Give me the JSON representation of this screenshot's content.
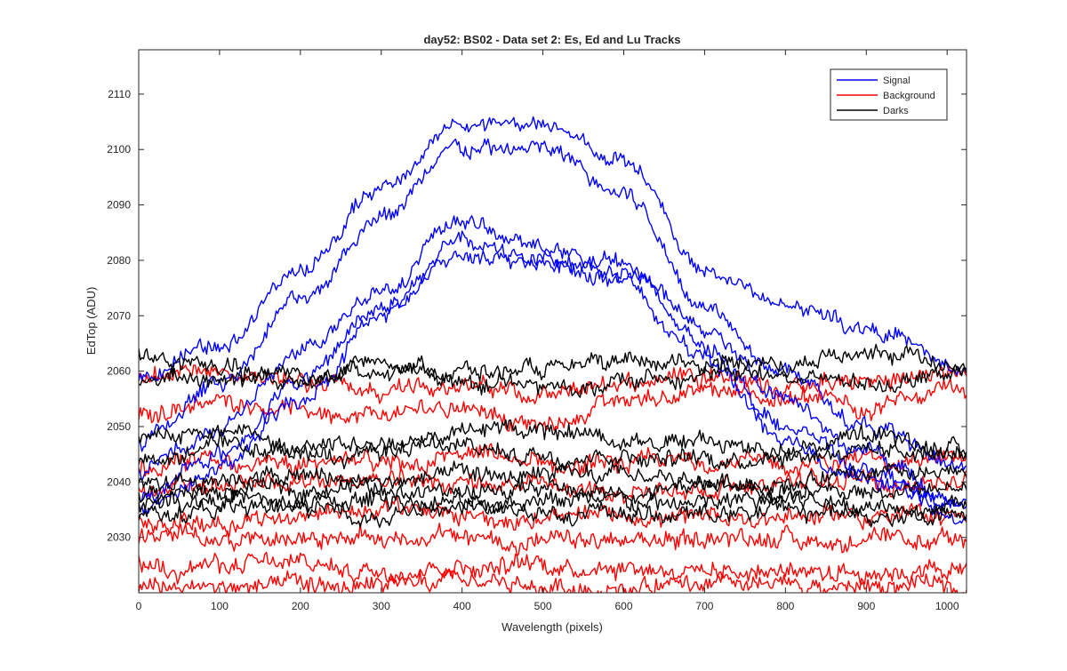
{
  "chart_data": {
    "type": "line",
    "title": "day52: BS02 - Data set 2: Es, Ed and Lu Tracks",
    "xlabel": "Wavelength (pixels)",
    "ylabel": "EdTop (ADU)",
    "xlim": [
      0,
      1024
    ],
    "ylim": [
      2020,
      2118
    ],
    "xticks": [
      0,
      100,
      200,
      300,
      400,
      500,
      600,
      700,
      800,
      900,
      1000
    ],
    "yticks": [
      2030,
      2040,
      2050,
      2060,
      2070,
      2080,
      2090,
      2100,
      2110
    ],
    "grid": false,
    "legend_position": "top-right",
    "legend": [
      {
        "name": "Signal",
        "color": "#0000ff"
      },
      {
        "name": "Background",
        "color": "#ff0000"
      },
      {
        "name": "Darks",
        "color": "#000000"
      }
    ],
    "noise_amplitude": {
      "Signal": 1.4,
      "Background": 1.6,
      "Darks": 1.5
    },
    "series": [
      {
        "name": "Signal",
        "color": "#0000ff",
        "anchors_x": [
          0,
          100,
          200,
          300,
          400,
          500,
          600,
          700,
          800,
          900,
          1024
        ],
        "anchors_y": [
          2059,
          2065,
          2078,
          2093,
          2105,
          2104,
          2098,
          2078,
          2072,
          2068,
          2060
        ]
      },
      {
        "name": "Signal",
        "color": "#0000ff",
        "anchors_x": [
          0,
          100,
          200,
          300,
          400,
          500,
          600,
          700,
          800,
          900,
          1024
        ],
        "anchors_y": [
          2047,
          2058,
          2073,
          2088,
          2100,
          2100,
          2092,
          2072,
          2060,
          2050,
          2042
        ]
      },
      {
        "name": "Signal",
        "color": "#0000ff",
        "anchors_x": [
          0,
          100,
          200,
          300,
          400,
          500,
          600,
          700,
          800,
          900,
          1024
        ],
        "anchors_y": [
          2042,
          2050,
          2063,
          2075,
          2087,
          2082,
          2079,
          2068,
          2055,
          2045,
          2036
        ]
      },
      {
        "name": "Signal",
        "color": "#0000ff",
        "anchors_x": [
          0,
          100,
          200,
          300,
          400,
          500,
          600,
          700,
          800,
          900,
          1024
        ],
        "anchors_y": [
          2037,
          2045,
          2058,
          2072,
          2083,
          2080,
          2078,
          2065,
          2050,
          2042,
          2033
        ]
      },
      {
        "name": "Signal",
        "color": "#0000ff",
        "anchors_x": [
          0,
          100,
          200,
          300,
          400,
          500,
          600,
          700,
          800,
          900,
          1024
        ],
        "anchors_y": [
          2035,
          2042,
          2055,
          2070,
          2081,
          2080,
          2076,
          2062,
          2048,
          2040,
          2036
        ]
      },
      {
        "name": "Background",
        "color": "#ff0000",
        "anchors_x": [
          0,
          100,
          200,
          300,
          400,
          500,
          600,
          700,
          800,
          900,
          1024
        ],
        "anchors_y": [
          2059,
          2060,
          2058,
          2056,
          2058,
          2055,
          2058,
          2060,
          2057,
          2058,
          2060
        ]
      },
      {
        "name": "Background",
        "color": "#ff0000",
        "anchors_x": [
          0,
          100,
          200,
          300,
          400,
          500,
          600,
          700,
          800,
          900,
          1024
        ],
        "anchors_y": [
          2052,
          2055,
          2053,
          2052,
          2054,
          2050,
          2055,
          2056,
          2055,
          2054,
          2056
        ]
      },
      {
        "name": "Background",
        "color": "#ff0000",
        "anchors_x": [
          0,
          100,
          200,
          300,
          400,
          500,
          600,
          700,
          800,
          900,
          1024
        ],
        "anchors_y": [
          2042,
          2044,
          2043,
          2043,
          2045,
          2043,
          2043,
          2044,
          2043,
          2044,
          2044
        ]
      },
      {
        "name": "Background",
        "color": "#ff0000",
        "anchors_x": [
          0,
          100,
          200,
          300,
          400,
          500,
          600,
          700,
          800,
          900,
          1024
        ],
        "anchors_y": [
          2039,
          2039,
          2040,
          2040,
          2040,
          2039,
          2038,
          2039,
          2040,
          2040,
          2040
        ]
      },
      {
        "name": "Background",
        "color": "#ff0000",
        "anchors_x": [
          0,
          100,
          200,
          300,
          400,
          500,
          600,
          700,
          800,
          900,
          1024
        ],
        "anchors_y": [
          2033,
          2033,
          2034,
          2035,
          2034,
          2033,
          2034,
          2033,
          2034,
          2034,
          2034
        ]
      },
      {
        "name": "Background",
        "color": "#ff0000",
        "anchors_x": [
          0,
          100,
          200,
          300,
          400,
          500,
          600,
          700,
          800,
          900,
          1024
        ],
        "anchors_y": [
          2030,
          2030,
          2030,
          2030,
          2030,
          2029,
          2029,
          2030,
          2030,
          2029,
          2029
        ]
      },
      {
        "name": "Background",
        "color": "#ff0000",
        "anchors_x": [
          0,
          100,
          200,
          300,
          400,
          500,
          600,
          700,
          800,
          900,
          1024
        ],
        "anchors_y": [
          2025,
          2025,
          2025,
          2024,
          2025,
          2025,
          2025,
          2024,
          2024,
          2024,
          2024
        ]
      },
      {
        "name": "Background",
        "color": "#ff0000",
        "anchors_x": [
          0,
          100,
          200,
          300,
          400,
          500,
          600,
          700,
          800,
          900,
          1024
        ],
        "anchors_y": [
          2021,
          2021,
          2021,
          2021,
          2022,
          2021,
          2021,
          2021,
          2021,
          2021,
          2021
        ]
      },
      {
        "name": "Darks",
        "color": "#000000",
        "anchors_x": [
          0,
          100,
          200,
          300,
          400,
          500,
          600,
          700,
          800,
          900,
          1024
        ],
        "anchors_y": [
          2063,
          2060,
          2058,
          2062,
          2060,
          2060,
          2061,
          2062,
          2061,
          2064,
          2060
        ]
      },
      {
        "name": "Darks",
        "color": "#000000",
        "anchors_x": [
          0,
          100,
          200,
          300,
          400,
          500,
          600,
          700,
          800,
          900,
          1024
        ],
        "anchors_y": [
          2058,
          2059,
          2060,
          2060,
          2058,
          2057,
          2058,
          2060,
          2059,
          2058,
          2059
        ]
      },
      {
        "name": "Darks",
        "color": "#000000",
        "anchors_x": [
          0,
          100,
          200,
          300,
          400,
          500,
          600,
          700,
          800,
          900,
          1024
        ],
        "anchors_y": [
          2048,
          2049,
          2047,
          2047,
          2049,
          2050,
          2048,
          2047,
          2046,
          2048,
          2046
        ]
      },
      {
        "name": "Darks",
        "color": "#000000",
        "anchors_x": [
          0,
          100,
          200,
          300,
          400,
          500,
          600,
          700,
          800,
          900,
          1024
        ],
        "anchors_y": [
          2044,
          2046,
          2045,
          2046,
          2046,
          2045,
          2045,
          2044,
          2045,
          2046,
          2045
        ]
      },
      {
        "name": "Darks",
        "color": "#000000",
        "anchors_x": [
          0,
          100,
          200,
          300,
          400,
          500,
          600,
          700,
          800,
          900,
          1024
        ],
        "anchors_y": [
          2040,
          2041,
          2041,
          2040,
          2041,
          2041,
          2041,
          2040,
          2040,
          2041,
          2041
        ]
      },
      {
        "name": "Darks",
        "color": "#000000",
        "anchors_x": [
          0,
          100,
          200,
          300,
          400,
          500,
          600,
          700,
          800,
          900,
          1024
        ],
        "anchors_y": [
          2038,
          2038,
          2039,
          2039,
          2038,
          2039,
          2038,
          2039,
          2038,
          2038,
          2039
        ]
      },
      {
        "name": "Darks",
        "color": "#000000",
        "anchors_x": [
          0,
          100,
          200,
          300,
          400,
          500,
          600,
          700,
          800,
          900,
          1024
        ],
        "anchors_y": [
          2036,
          2037,
          2036,
          2037,
          2036,
          2037,
          2036,
          2036,
          2037,
          2036,
          2036
        ]
      },
      {
        "name": "Darks",
        "color": "#000000",
        "anchors_x": [
          0,
          100,
          200,
          300,
          400,
          500,
          600,
          700,
          800,
          900,
          1024
        ],
        "anchors_y": [
          2034,
          2035,
          2035,
          2034,
          2035,
          2035,
          2034,
          2034,
          2035,
          2034,
          2034
        ]
      }
    ]
  }
}
